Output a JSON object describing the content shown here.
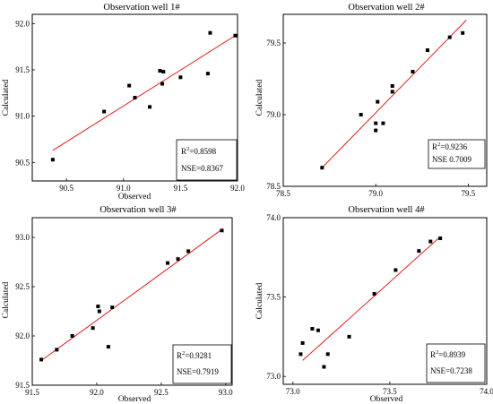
{
  "figure": {
    "background": "#ffffff",
    "point_color": "#000000",
    "fit_line_color": "#e31a1c",
    "frame_color": "#000000"
  },
  "chart_data": [
    {
      "type": "scatter",
      "title": "Observation well 1#",
      "xlabel": "Observed",
      "ylabel": "Calculated",
      "xlim": [
        90.2,
        92.0
      ],
      "ylim": [
        90.3,
        92.1
      ],
      "xticks": [
        90.5,
        91.0,
        91.5,
        92.0
      ],
      "yticks": [
        90.5,
        91.0,
        91.5,
        92.0
      ],
      "tick_format": 1,
      "grid": false,
      "legend": "none",
      "stats": {
        "r2_label": "R",
        "r2_sup": "2",
        "r2_value": "=0.8598",
        "nse_text": "NSE=0.8367"
      },
      "stats_position": "bottom-right",
      "points": [
        {
          "x": 90.38,
          "y": 90.53
        },
        {
          "x": 90.83,
          "y": 91.05
        },
        {
          "x": 91.05,
          "y": 91.33
        },
        {
          "x": 91.1,
          "y": 91.2
        },
        {
          "x": 91.23,
          "y": 91.1
        },
        {
          "x": 91.32,
          "y": 91.49
        },
        {
          "x": 91.35,
          "y": 91.48
        },
        {
          "x": 91.34,
          "y": 91.35
        },
        {
          "x": 91.5,
          "y": 91.42
        },
        {
          "x": 91.74,
          "y": 91.46
        },
        {
          "x": 91.76,
          "y": 91.9
        },
        {
          "x": 91.98,
          "y": 91.87
        }
      ],
      "fit_line": {
        "x": [
          90.38,
          91.98
        ],
        "y": [
          90.63,
          91.87
        ]
      }
    },
    {
      "type": "scatter",
      "title": "Observation well 2#",
      "xlabel": "",
      "ylabel": "Calculated",
      "xlim": [
        78.5,
        79.6
      ],
      "ylim": [
        78.5,
        79.7
      ],
      "xticks": [
        78.5,
        79.0,
        79.5
      ],
      "yticks": [
        78.5,
        79.0,
        79.5
      ],
      "tick_format": 1,
      "grid": false,
      "legend": "none",
      "stats": {
        "r2_label": "R",
        "r2_sup": "2",
        "r2_value": "=0.9236",
        "nse_text": "NSE  0.7009"
      },
      "stats_position": "bottom-right",
      "points": [
        {
          "x": 78.71,
          "y": 78.63
        },
        {
          "x": 78.92,
          "y": 79.0
        },
        {
          "x": 79.0,
          "y": 78.94
        },
        {
          "x": 79.0,
          "y": 78.89
        },
        {
          "x": 79.01,
          "y": 79.09
        },
        {
          "x": 79.04,
          "y": 78.94
        },
        {
          "x": 79.09,
          "y": 79.2
        },
        {
          "x": 79.09,
          "y": 79.16
        },
        {
          "x": 79.2,
          "y": 79.3
        },
        {
          "x": 79.28,
          "y": 79.45
        },
        {
          "x": 79.4,
          "y": 79.54
        },
        {
          "x": 79.47,
          "y": 79.57
        }
      ],
      "fit_line": {
        "x": [
          78.71,
          79.49
        ],
        "y": [
          78.63,
          79.66
        ]
      }
    },
    {
      "type": "scatter",
      "title": "Observation well 3#",
      "xlabel": "Observed",
      "ylabel": "Calculated",
      "xlim": [
        91.5,
        93.05
      ],
      "ylim": [
        91.5,
        93.2
      ],
      "xticks": [
        91.5,
        92.0,
        92.5,
        93.0
      ],
      "yticks": [
        91.5,
        92.0,
        92.5,
        93.0
      ],
      "tick_format": 1,
      "grid": false,
      "legend": "none",
      "stats": {
        "r2_label": "R",
        "r2_sup": "2",
        "r2_value": "=0.9281",
        "nse_text": "NSE=0.7919"
      },
      "stats_position": "bottom-right",
      "points": [
        {
          "x": 91.57,
          "y": 91.76
        },
        {
          "x": 91.69,
          "y": 91.86
        },
        {
          "x": 91.81,
          "y": 92.0
        },
        {
          "x": 91.97,
          "y": 92.08
        },
        {
          "x": 92.01,
          "y": 92.3
        },
        {
          "x": 92.02,
          "y": 92.25
        },
        {
          "x": 92.09,
          "y": 91.89
        },
        {
          "x": 92.12,
          "y": 92.29
        },
        {
          "x": 92.55,
          "y": 92.74
        },
        {
          "x": 92.63,
          "y": 92.78
        },
        {
          "x": 92.71,
          "y": 92.86
        },
        {
          "x": 92.97,
          "y": 93.07
        }
      ],
      "fit_line": {
        "x": [
          91.57,
          92.97
        ],
        "y": [
          91.75,
          93.08
        ]
      }
    },
    {
      "type": "scatter",
      "title": "Observation well 4#",
      "xlabel": "Observed",
      "ylabel": "Calculated",
      "xlim": [
        72.95,
        74.0
      ],
      "ylim": [
        72.95,
        74.0
      ],
      "xticks": [
        73.0,
        73.5,
        74.0
      ],
      "yticks": [
        73.0,
        73.5,
        74.0
      ],
      "tick_format": 1,
      "grid": false,
      "legend": "none",
      "stats": {
        "r2_label": "R",
        "r2_sup": "2",
        "r2_value": "=0.8939",
        "nse_text": "NSE=0.7238"
      },
      "stats_position": "bottom-right",
      "points": [
        {
          "x": 73.04,
          "y": 73.14
        },
        {
          "x": 73.05,
          "y": 73.21
        },
        {
          "x": 73.1,
          "y": 73.3
        },
        {
          "x": 73.13,
          "y": 73.29
        },
        {
          "x": 73.16,
          "y": 73.06
        },
        {
          "x": 73.18,
          "y": 73.14
        },
        {
          "x": 73.29,
          "y": 73.25
        },
        {
          "x": 73.42,
          "y": 73.52
        },
        {
          "x": 73.53,
          "y": 73.67
        },
        {
          "x": 73.65,
          "y": 73.79
        },
        {
          "x": 73.71,
          "y": 73.85
        },
        {
          "x": 73.76,
          "y": 73.87
        }
      ],
      "fit_line": {
        "x": [
          73.05,
          73.76
        ],
        "y": [
          73.1,
          73.88
        ]
      }
    }
  ]
}
